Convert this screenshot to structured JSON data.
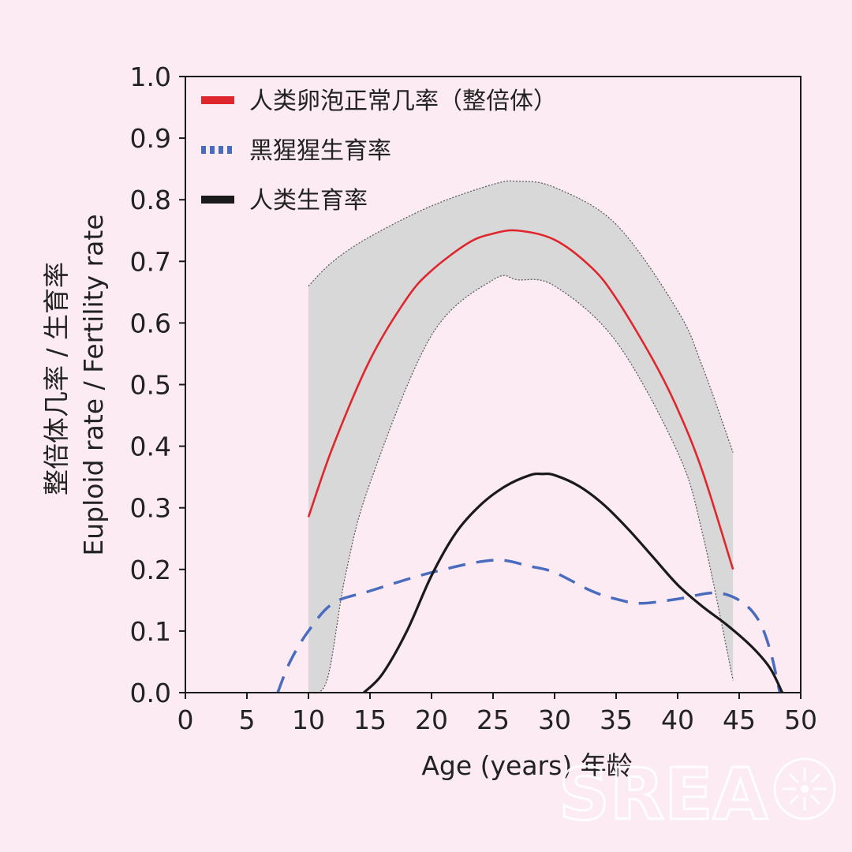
{
  "chart_data": {
    "type": "line",
    "title": "",
    "xlabel": "Age (years) 年龄",
    "ylabel_line1": "整倍体几率 / 生育率",
    "ylabel_line2": "Euploid rate / Fertility rate",
    "xlim": [
      0,
      50
    ],
    "ylim": [
      0,
      1.0
    ],
    "xticks": [
      0,
      5,
      10,
      15,
      20,
      25,
      30,
      35,
      40,
      45,
      50
    ],
    "yticks": [
      "0.0",
      "0.1",
      "0.2",
      "0.3",
      "0.4",
      "0.5",
      "0.6",
      "0.7",
      "0.8",
      "0.9",
      "1.0"
    ],
    "grid": false,
    "legend_position": "top-left",
    "band": {
      "upper": [
        [
          10,
          0.66
        ],
        [
          12,
          0.7
        ],
        [
          15,
          0.74
        ],
        [
          20,
          0.79
        ],
        [
          25,
          0.825
        ],
        [
          27,
          0.83
        ],
        [
          30,
          0.82
        ],
        [
          35,
          0.76
        ],
        [
          40,
          0.62
        ],
        [
          42,
          0.53
        ],
        [
          44.5,
          0.39
        ]
      ],
      "lower": [
        [
          10,
          0.0
        ],
        [
          11.5,
          0.02
        ],
        [
          13,
          0.19
        ],
        [
          15,
          0.34
        ],
        [
          20,
          0.58
        ],
        [
          25,
          0.67
        ],
        [
          27,
          0.67
        ],
        [
          30,
          0.66
        ],
        [
          35,
          0.57
        ],
        [
          40,
          0.39
        ],
        [
          42,
          0.26
        ],
        [
          44.5,
          0.02
        ]
      ],
      "color": "#d8d8d8"
    },
    "series": [
      {
        "name": "人类卵泡正常几率（整倍体）",
        "style": "solid",
        "color": "#e0262d",
        "points": [
          [
            10,
            0.285
          ],
          [
            12,
            0.4
          ],
          [
            15,
            0.54
          ],
          [
            18,
            0.64
          ],
          [
            20,
            0.685
          ],
          [
            23,
            0.73
          ],
          [
            25,
            0.745
          ],
          [
            27,
            0.75
          ],
          [
            30,
            0.735
          ],
          [
            33,
            0.69
          ],
          [
            35,
            0.64
          ],
          [
            38,
            0.54
          ],
          [
            40,
            0.46
          ],
          [
            42,
            0.36
          ],
          [
            44.5,
            0.2
          ]
        ]
      },
      {
        "name": "黑猩猩生育率",
        "style": "dashed",
        "color": "#4a6cbf",
        "points": [
          [
            7.5,
            0.0
          ],
          [
            8.5,
            0.05
          ],
          [
            10,
            0.1
          ],
          [
            12,
            0.145
          ],
          [
            15,
            0.165
          ],
          [
            20,
            0.195
          ],
          [
            25,
            0.215
          ],
          [
            28,
            0.205
          ],
          [
            30,
            0.195
          ],
          [
            33,
            0.165
          ],
          [
            35,
            0.152
          ],
          [
            37,
            0.145
          ],
          [
            40,
            0.152
          ],
          [
            43,
            0.162
          ],
          [
            45,
            0.15
          ],
          [
            46.5,
            0.12
          ],
          [
            47.5,
            0.07
          ],
          [
            48.3,
            0.0
          ]
        ]
      },
      {
        "name": "人类生育率",
        "style": "solid",
        "color": "#1a1a1a",
        "points": [
          [
            14.5,
            0.0
          ],
          [
            16,
            0.03
          ],
          [
            18,
            0.1
          ],
          [
            20,
            0.19
          ],
          [
            22,
            0.26
          ],
          [
            24,
            0.305
          ],
          [
            26,
            0.335
          ],
          [
            28,
            0.353
          ],
          [
            29,
            0.355
          ],
          [
            30,
            0.353
          ],
          [
            32,
            0.335
          ],
          [
            34,
            0.305
          ],
          [
            36,
            0.265
          ],
          [
            38,
            0.22
          ],
          [
            40,
            0.175
          ],
          [
            42,
            0.14
          ],
          [
            44,
            0.11
          ],
          [
            46,
            0.075
          ],
          [
            47.5,
            0.04
          ],
          [
            48.5,
            0.0
          ]
        ]
      }
    ]
  },
  "watermark": "SREA"
}
